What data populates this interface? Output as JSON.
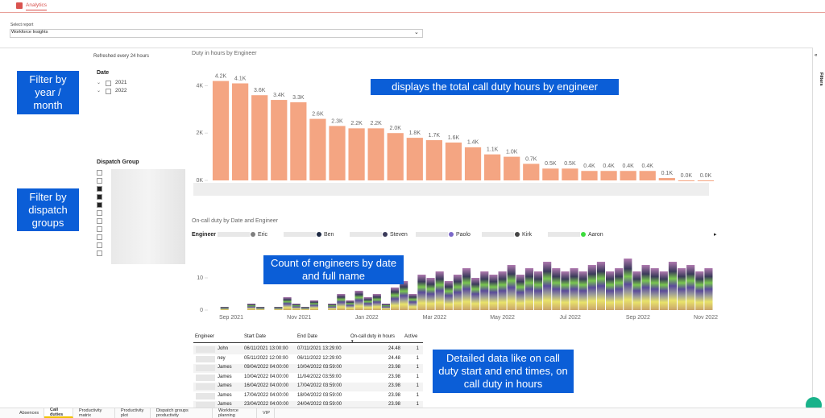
{
  "header": {
    "app": "Analytics"
  },
  "report_select": {
    "label": "Select report",
    "value": "Workforce Insights"
  },
  "refresh_note": "Refreshed every 24 hours",
  "filters": {
    "date_title": "Date",
    "years": [
      "2021",
      "2022"
    ],
    "dispatch_title": "Dispatch Group",
    "side_label": "Filters"
  },
  "annotations": [
    "Filter by year / month",
    "Filter by dispatch groups",
    "displays the total call duty hours by engineer",
    "Count of engineers by date and full name",
    "Detailed data like on call duty start and end times, on call duty in hours"
  ],
  "bar_chart": {
    "type": "bar",
    "title": "Duty in hours by Engineer",
    "color": "#f4a582",
    "categories": [
      null,
      null,
      null,
      null,
      null,
      null,
      null,
      null,
      null,
      null,
      null,
      null,
      null,
      null,
      null,
      null,
      null,
      null,
      null,
      null,
      null,
      null,
      null,
      null,
      null,
      null
    ],
    "values": [
      4200,
      4100,
      3600,
      3400,
      3300,
      2600,
      2300,
      2200,
      2200,
      2000,
      1800,
      1700,
      1600,
      1400,
      1100,
      1000,
      700,
      500,
      500,
      400,
      400,
      400,
      400,
      100,
      0,
      0
    ],
    "value_labels": [
      "4.2K",
      "4.1K",
      "3.6K",
      "3.4K",
      "3.3K",
      "2.6K",
      "2.3K",
      "2.2K",
      "2.2K",
      "2.0K",
      "1.8K",
      "1.7K",
      "1.6K",
      "1.4K",
      "1.1K",
      "1.0K",
      "0.7K",
      "0.5K",
      "0.5K",
      "0.4K",
      "0.4K",
      "0.4K",
      "0.4K",
      "0.1K",
      "0.0K",
      "0.0K"
    ],
    "ylim": [
      0,
      4900
    ],
    "yticks": [
      {
        "value": 0,
        "label": "0K"
      },
      {
        "value": 2000,
        "label": "2K"
      },
      {
        "value": 4000,
        "label": "4K"
      }
    ]
  },
  "column_chart": {
    "type": "bar",
    "title": "On-call duty by Date and Engineer",
    "legend_title": "Engineer",
    "legend": [
      {
        "name": "Eric",
        "color": "#7f7f7f"
      },
      {
        "name": "Ben",
        "color": "#1f2a44"
      },
      {
        "name": "Steven",
        "color": "#3a3a5a"
      },
      {
        "name": "Paolo",
        "color": "#7b68c8"
      },
      {
        "name": "Kirk",
        "color": "#444444"
      },
      {
        "name": "Aaron",
        "color": "#3ddc3d"
      }
    ],
    "x_labels": [
      "Sep 2021",
      "Nov 2021",
      "Jan 2022",
      "Mar 2022",
      "May 2022",
      "Jul 2022",
      "Sep 2022",
      "Nov 2022"
    ],
    "values": [
      0,
      1,
      0,
      0,
      2,
      1,
      0,
      1,
      4,
      2,
      1,
      3,
      0,
      2,
      5,
      3,
      6,
      4,
      5,
      2,
      7,
      9,
      5,
      11,
      10,
      12,
      9,
      11,
      13,
      10,
      12,
      11,
      12,
      14,
      11,
      13,
      12,
      15,
      13,
      12,
      13,
      12,
      14,
      15,
      12,
      13,
      16,
      12,
      14,
      13,
      12,
      15,
      13,
      14,
      12,
      13
    ],
    "ylim": [
      0,
      18
    ],
    "yticks": [
      0,
      10
    ]
  },
  "table": {
    "columns": [
      "Engineer",
      "Start Date",
      "End Date",
      "On-call duty in hours",
      "Active"
    ],
    "rows": [
      [
        "John",
        "06/11/2021 13:00:00",
        "07/11/2021 13:29:00",
        "24.48",
        "1"
      ],
      [
        "ney",
        "05/11/2022 12:00:00",
        "06/11/2022 12:29:00",
        "24.48",
        "1"
      ],
      [
        "James",
        "09/04/2022 04:00:00",
        "10/04/2022 03:59:00",
        "23.98",
        "1"
      ],
      [
        "James",
        "10/04/2022 04:00:00",
        "11/04/2022 03:59:00",
        "23.98",
        "1"
      ],
      [
        "James",
        "16/04/2022 04:00:00",
        "17/04/2022 03:59:00",
        "23.98",
        "1"
      ],
      [
        "James",
        "17/04/2022 04:00:00",
        "18/04/2022 03:59:00",
        "23.98",
        "1"
      ],
      [
        "James",
        "23/04/2022 04:00:00",
        "24/04/2022 03:59:00",
        "23.98",
        "1"
      ]
    ]
  },
  "tabs": {
    "items": [
      "Absences",
      "Call duties",
      "Productivity matrix",
      "Productivity plot",
      "Dispatch groups productivity",
      "Workforce planning",
      "VIP"
    ],
    "active": 1
  }
}
